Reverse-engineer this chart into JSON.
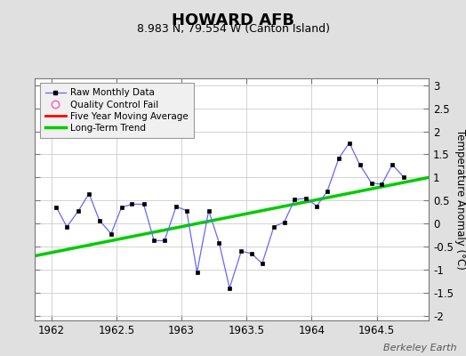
{
  "title": "HOWARD AFB",
  "subtitle": "8.983 N, 79.554 W (Canton Island)",
  "ylabel": "Temperature Anomaly (°C)",
  "xlabel_credit": "Berkeley Earth",
  "xlim": [
    1961.875,
    1964.9
  ],
  "ylim": [
    -2.1,
    3.15
  ],
  "yticks": [
    -2,
    -1.5,
    -1,
    -0.5,
    0,
    0.5,
    1,
    1.5,
    2,
    2.5,
    3
  ],
  "xticks": [
    1962,
    1962.5,
    1963,
    1963.5,
    1964,
    1964.5
  ],
  "background_color": "#e0e0e0",
  "plot_bg_color": "#ffffff",
  "raw_x": [
    1962.04,
    1962.12,
    1962.21,
    1962.29,
    1962.37,
    1962.46,
    1962.54,
    1962.62,
    1962.71,
    1962.79,
    1962.87,
    1962.96,
    1963.04,
    1963.12,
    1963.21,
    1963.29,
    1963.37,
    1963.46,
    1963.54,
    1963.62,
    1963.71,
    1963.79,
    1963.87,
    1963.96,
    1964.04,
    1964.12,
    1964.21,
    1964.29,
    1964.37,
    1964.46,
    1964.54,
    1964.62,
    1964.71
  ],
  "raw_y": [
    0.35,
    -0.07,
    0.28,
    0.65,
    0.07,
    -0.22,
    0.35,
    0.42,
    0.42,
    -0.37,
    -0.37,
    0.37,
    0.28,
    -1.05,
    0.28,
    -0.42,
    -1.4,
    -0.6,
    -0.65,
    -0.87,
    -0.07,
    0.03,
    0.52,
    0.55,
    0.38,
    0.7,
    1.42,
    1.75,
    1.28,
    0.88,
    0.85,
    1.28,
    1.0
  ],
  "trend_x": [
    1961.875,
    1964.9
  ],
  "trend_y": [
    -0.7,
    1.0
  ],
  "raw_line_color": "#6666ff",
  "raw_marker_color": "#000000",
  "trend_color": "#00cc00",
  "moving_avg_color": "#ff0000",
  "qc_fail_color": "#ff69b4",
  "title_fontsize": 13,
  "subtitle_fontsize": 9,
  "tick_fontsize": 8.5,
  "ylabel_fontsize": 8.5,
  "credit_fontsize": 8
}
